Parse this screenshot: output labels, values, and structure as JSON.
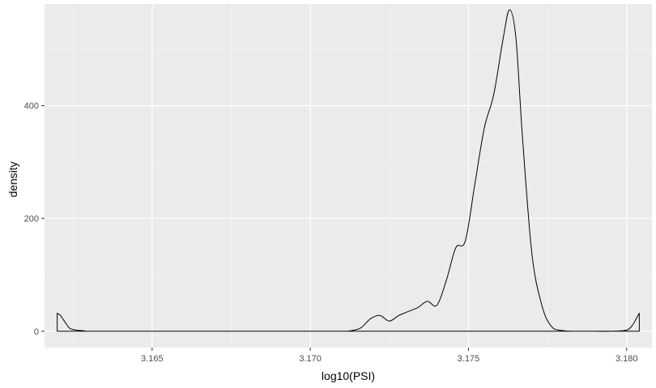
{
  "chart_data": {
    "type": "area",
    "title": "",
    "xlabel": "log10(PSI)",
    "ylabel": "density",
    "xlim": [
      3.1616,
      3.1808
    ],
    "ylim": [
      -29,
      580
    ],
    "x_ticks": [
      "3.165",
      "3.170",
      "3.175",
      "3.180"
    ],
    "x_tick_values": [
      3.165,
      3.17,
      3.175,
      3.18
    ],
    "y_ticks": [
      "0",
      "200",
      "400"
    ],
    "y_tick_values": [
      0,
      200,
      400
    ],
    "grid": true,
    "legend": "none",
    "series": [
      {
        "x": [
          3.162,
          3.1621,
          3.1622,
          3.1623,
          3.1624,
          3.1626,
          3.1628,
          3.163,
          3.164,
          3.17,
          3.171,
          3.1713,
          3.1716,
          3.1719,
          3.1722,
          3.1725,
          3.1728,
          3.1731,
          3.1734,
          3.1737,
          3.174,
          3.1743,
          3.1746,
          3.1749,
          3.1752,
          3.1755,
          3.1758,
          3.1761,
          3.1763,
          3.1765,
          3.1767,
          3.177,
          3.1773,
          3.1776,
          3.178,
          3.179,
          3.1795,
          3.18,
          3.1802,
          3.1803,
          3.1804
        ],
        "y": [
          32,
          28,
          20,
          12,
          5,
          2,
          1,
          0,
          0,
          0,
          0,
          1,
          6,
          22,
          28,
          18,
          28,
          35,
          42,
          53,
          46,
          90,
          148,
          160,
          260,
          360,
          420,
          520,
          570,
          520,
          350,
          140,
          50,
          10,
          1,
          0,
          0,
          2,
          12,
          22,
          32
        ]
      }
    ]
  }
}
